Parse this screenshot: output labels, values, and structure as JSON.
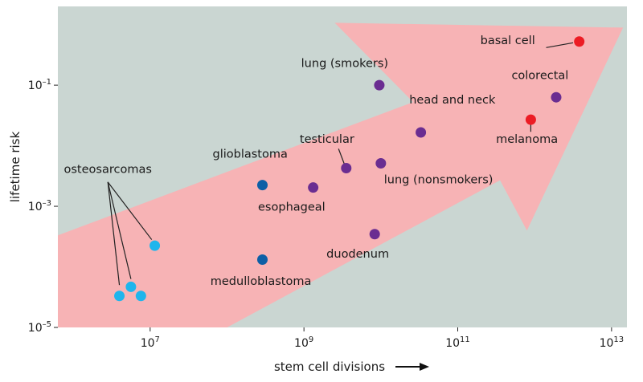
{
  "chart_data": {
    "type": "scatter",
    "title": "",
    "xlabel": "stem cell divisions",
    "ylabel": "lifetime risk",
    "x_scale": "log10",
    "y_scale": "log10",
    "xlim_log10": [
      5.8,
      13.2
    ],
    "ylim_log10": [
      -5,
      0.3
    ],
    "x_ticks": [
      {
        "exp": 7,
        "base": "10",
        "sup": "7"
      },
      {
        "exp": 9,
        "base": "10",
        "sup": "9"
      },
      {
        "exp": 11,
        "base": "10",
        "sup": "11"
      },
      {
        "exp": 13,
        "base": "10",
        "sup": "13"
      }
    ],
    "y_ticks": [
      {
        "exp": -1,
        "base": "10",
        "sup": "–1"
      },
      {
        "exp": -3,
        "base": "10",
        "sup": "–3"
      },
      {
        "exp": -5,
        "base": "10",
        "sup": "–5"
      }
    ],
    "colors": {
      "background": "#cad6d2",
      "arrow": "#f7b3b5",
      "light_blue": "#1fb5ec",
      "dark_blue": "#0d5fa6",
      "purple": "#6a2d91",
      "red": "#ec1c24",
      "leader": "#222222"
    },
    "points": [
      {
        "name": "osteosarcoma-femur",
        "x_log10": 7.06,
        "y_log10": -3.65,
        "color": "light_blue"
      },
      {
        "name": "osteosarcoma-1",
        "x_log10": 6.6,
        "y_log10": -4.48,
        "color": "light_blue"
      },
      {
        "name": "osteosarcoma-2",
        "x_log10": 6.75,
        "y_log10": -4.33,
        "color": "light_blue"
      },
      {
        "name": "osteosarcoma-3",
        "x_log10": 6.88,
        "y_log10": -4.48,
        "color": "light_blue"
      },
      {
        "name": "glioblastoma",
        "x_log10": 8.46,
        "y_log10": -2.65,
        "color": "dark_blue"
      },
      {
        "name": "medulloblastoma",
        "x_log10": 8.46,
        "y_log10": -3.88,
        "color": "dark_blue"
      },
      {
        "name": "esophageal",
        "x_log10": 9.12,
        "y_log10": -2.69,
        "color": "purple"
      },
      {
        "name": "testicular",
        "x_log10": 9.55,
        "y_log10": -2.37,
        "color": "purple"
      },
      {
        "name": "lung-nonsmokers",
        "x_log10": 10.0,
        "y_log10": -2.29,
        "color": "purple"
      },
      {
        "name": "duodenum",
        "x_log10": 9.92,
        "y_log10": -3.46,
        "color": "purple"
      },
      {
        "name": "lung-smokers",
        "x_log10": 9.98,
        "y_log10": -1.0,
        "color": "purple"
      },
      {
        "name": "head-and-neck",
        "x_log10": 10.52,
        "y_log10": -1.78,
        "color": "purple"
      },
      {
        "name": "colorectal",
        "x_log10": 12.28,
        "y_log10": -1.2,
        "color": "purple"
      },
      {
        "name": "basal-cell",
        "x_log10": 12.58,
        "y_log10": -0.28,
        "color": "red"
      },
      {
        "name": "melanoma",
        "x_log10": 11.95,
        "y_log10": -1.57,
        "color": "red"
      }
    ],
    "annotations": [
      {
        "name": "label-osteosarcomas",
        "text": "osteosarcomas",
        "x_log10": 6.45,
        "y_log10": -2.45,
        "anchor": "middle"
      },
      {
        "name": "label-glioblastoma",
        "text": "glioblastoma",
        "x_log10": 8.3,
        "y_log10": -2.2,
        "anchor": "middle"
      },
      {
        "name": "label-medulloblastoma",
        "text": "medulloblastoma",
        "x_log10": 8.44,
        "y_log10": -4.3,
        "anchor": "middle"
      },
      {
        "name": "label-esophageal",
        "text": "esophageal",
        "x_log10": 8.84,
        "y_log10": -3.07,
        "anchor": "middle"
      },
      {
        "name": "label-testicular",
        "text": "testicular",
        "x_log10": 9.3,
        "y_log10": -1.95,
        "anchor": "middle"
      },
      {
        "name": "label-lung-nonsmokers",
        "text": "lung (nonsmokers)",
        "x_log10": 10.75,
        "y_log10": -2.62,
        "anchor": "middle"
      },
      {
        "name": "label-duodenum",
        "text": "duodenum",
        "x_log10": 9.7,
        "y_log10": -3.85,
        "anchor": "middle"
      },
      {
        "name": "label-lung-smokers",
        "text": "lung (smokers)",
        "x_log10": 9.53,
        "y_log10": -0.7,
        "anchor": "middle"
      },
      {
        "name": "label-head-and-neck",
        "text": "head and neck",
        "x_log10": 10.93,
        "y_log10": -1.3,
        "anchor": "middle"
      },
      {
        "name": "label-colorectal",
        "text": "colorectal",
        "x_log10": 12.07,
        "y_log10": -0.9,
        "anchor": "middle"
      },
      {
        "name": "label-basal-cell",
        "text": "basal cell",
        "x_log10": 11.65,
        "y_log10": -0.32,
        "anchor": "middle"
      },
      {
        "name": "label-melanoma",
        "text": "melanoma",
        "x_log10": 11.9,
        "y_log10": -1.95,
        "anchor": "middle"
      }
    ],
    "leaders": [
      {
        "name": "leader-osteosarcoma-a",
        "from": [
          6.45,
          -2.6
        ],
        "to": [
          6.6,
          -4.3
        ]
      },
      {
        "name": "leader-osteosarcoma-b",
        "from": [
          6.45,
          -2.6
        ],
        "to": [
          6.75,
          -4.2
        ]
      },
      {
        "name": "leader-osteosarcoma-c",
        "from": [
          6.45,
          -2.6
        ],
        "to": [
          7.02,
          -3.55
        ]
      },
      {
        "name": "leader-testicular",
        "from": [
          9.45,
          -2.05
        ],
        "to": [
          9.53,
          -2.32
        ]
      },
      {
        "name": "leader-basal-cell",
        "from": [
          12.15,
          -0.38
        ],
        "to": [
          12.5,
          -0.3
        ]
      },
      {
        "name": "leader-melanoma",
        "from": [
          11.95,
          -1.6
        ],
        "to": [
          11.95,
          -1.77
        ]
      }
    ],
    "arrow_polygon_log10": [
      [
        5.8,
        -3.48
      ],
      [
        10.42,
        -1.28
      ],
      [
        9.4,
        0.03
      ],
      [
        13.15,
        -0.05
      ],
      [
        11.9,
        -3.4
      ],
      [
        11.55,
        -2.57
      ],
      [
        8.0,
        -5.0
      ],
      [
        5.8,
        -5.0
      ]
    ]
  }
}
